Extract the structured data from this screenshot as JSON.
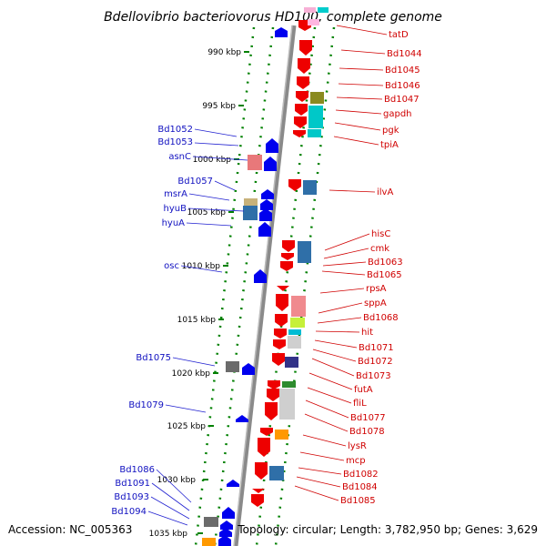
{
  "title": "Bdellovibrio bacteriovorus HD100, complete genome",
  "footer": {
    "accession": "Accession: NC_005363",
    "summary": "Topology: circular; Length: 3,782,950 bp; Genes: 3,629"
  },
  "ticks": [
    "990 kbp",
    "995 kbp",
    "1000 kbp",
    "1005 kbp",
    "1010 kbp",
    "1015 kbp",
    "1020 kbp",
    "1025 kbp",
    "1030 kbp",
    "1035 kbp"
  ],
  "left_labels": [
    "Bd1052",
    "Bd1053",
    "asnC",
    "Bd1057",
    "msrA",
    "hyuB",
    "hyuA",
    "osc",
    "Bd1075",
    "Bd1079",
    "Bd1086",
    "Bd1091",
    "Bd1093",
    "Bd1094"
  ],
  "right_labels": [
    "tatD",
    "Bd1044",
    "Bd1045",
    "Bd1046",
    "Bd1047",
    "gapdh",
    "pgk",
    "tpiA",
    "ilvA",
    "hisC",
    "cmk",
    "Bd1063",
    "Bd1065",
    "rpsA",
    "sppA",
    "Bd1068",
    "hit",
    "Bd1071",
    "Bd1072",
    "Bd1073",
    "futA",
    "fliL",
    "Bd1077",
    "Bd1078",
    "lysR",
    "mcp",
    "Bd1082",
    "Bd1084",
    "Bd1085"
  ],
  "colors": {
    "forward_gene": "#0000ee",
    "reverse_gene": "#ee0000",
    "left_label": "#1010c0",
    "right_label": "#d00000",
    "backbone": "#808080",
    "tick": "#008000"
  }
}
